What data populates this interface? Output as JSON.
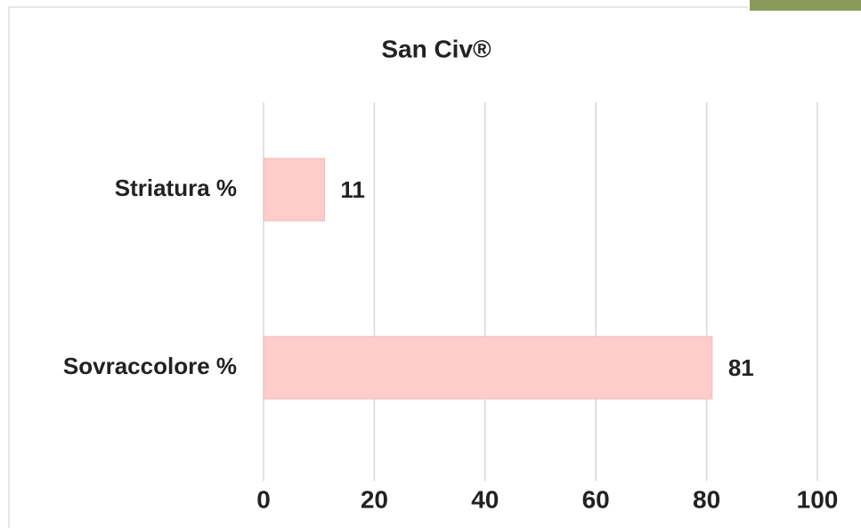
{
  "chart_data": {
    "type": "bar",
    "orientation": "horizontal",
    "title": "San Civ®",
    "categories": [
      "Striatura %",
      "Sovraccolore %"
    ],
    "values": [
      11,
      81
    ],
    "color": "#ffcccc",
    "xlim": [
      0,
      100
    ],
    "xticks": [
      0,
      20,
      40,
      60,
      80,
      100
    ],
    "grid": true
  }
}
